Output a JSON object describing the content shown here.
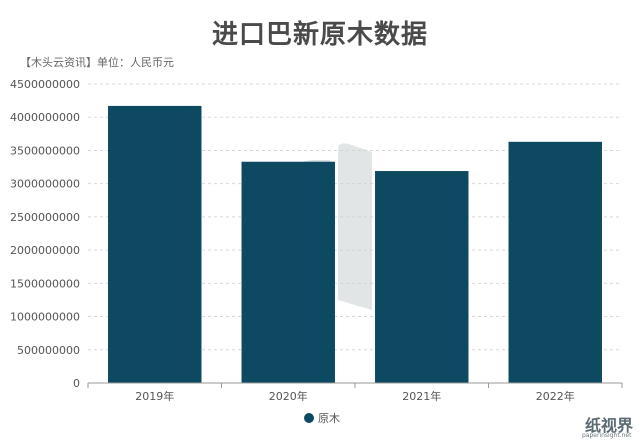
{
  "chart_data": {
    "type": "bar",
    "title": "进口巴新原木数据",
    "subtitle": "【木头云资讯】单位：人民币元",
    "categories": [
      "2019年",
      "2020年",
      "2021年",
      "2022年"
    ],
    "series": [
      {
        "name": "原木",
        "values": [
          4170000000,
          3330000000,
          3190000000,
          3630000000
        ]
      }
    ],
    "y_ticks": [
      "0",
      "500000000",
      "1000000000",
      "1500000000",
      "2000000000",
      "2500000000",
      "3000000000",
      "3500000000",
      "4000000000",
      "4500000000"
    ],
    "ylim": [
      0,
      4500000000
    ],
    "grid": "horizontal dashed",
    "legend_position": "bottom-center",
    "colors": {
      "bar": "#0d4a62",
      "grid": "#d8d8d8",
      "axis": "#9a9a9a"
    }
  },
  "watermark": {
    "text": "纸视界",
    "sub": "paperinsight.net"
  }
}
